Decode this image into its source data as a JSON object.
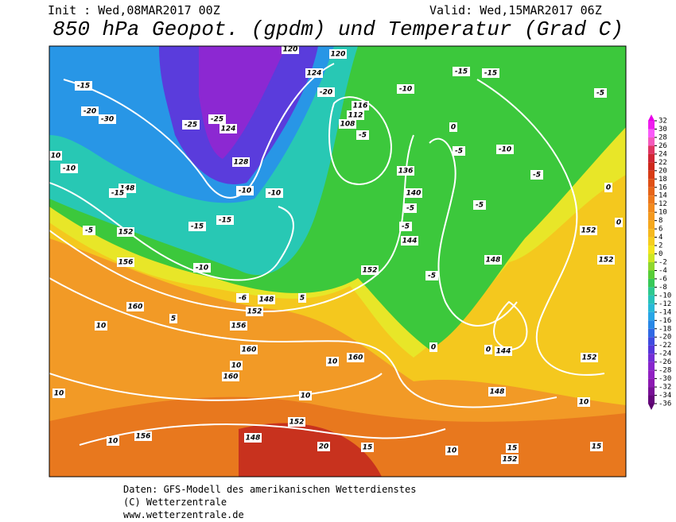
{
  "header": {
    "init": "Init : Wed,08MAR2017 00Z",
    "valid": "Valid: Wed,15MAR2017 06Z",
    "title": "850 hPa Geopot. (gpdm) und Temperatur (Grad C)"
  },
  "colorbar": {
    "ticks": [
      32,
      30,
      28,
      26,
      24,
      22,
      20,
      18,
      16,
      14,
      12,
      10,
      8,
      6,
      4,
      2,
      0,
      -2,
      -4,
      -6,
      -8,
      -10,
      -12,
      -14,
      -16,
      -18,
      -20,
      -22,
      -24,
      -26,
      -28,
      -30,
      -32,
      -34,
      -36
    ]
  },
  "map": {
    "labels": [
      "-15",
      "-20",
      "-30",
      "-25",
      "-25",
      "124",
      "128",
      "120",
      "108",
      "112",
      "116",
      "-5",
      "-10",
      "-15",
      "-15",
      "-5",
      "136",
      "140",
      "144",
      "148",
      "152",
      "156",
      "160",
      "156",
      "160",
      "160",
      "10",
      "10",
      "10",
      "156",
      "152",
      "148",
      "20",
      "15",
      "10",
      "15",
      "152",
      "148",
      "144",
      "152",
      "10",
      "15",
      "152",
      "152",
      "0",
      "0",
      "-5",
      "-5",
      "148",
      "152",
      "-10",
      "-6",
      "148",
      "152",
      "5",
      "5",
      "10",
      "10",
      "160",
      "10",
      "0",
      "0",
      "-5",
      "-5",
      "-20",
      "120",
      "124",
      "-10",
      "-10",
      "-15",
      "-15",
      "-5",
      "-10",
      "10",
      "-15",
      "0",
      "-5",
      "-10",
      "-5"
    ]
  },
  "footer": {
    "line1": "Daten: GFS-Modell des amerikanischen Wetterdienstes",
    "line2": "(C) Wetterzentrale",
    "line3": "www.wetterzentrale.de"
  }
}
